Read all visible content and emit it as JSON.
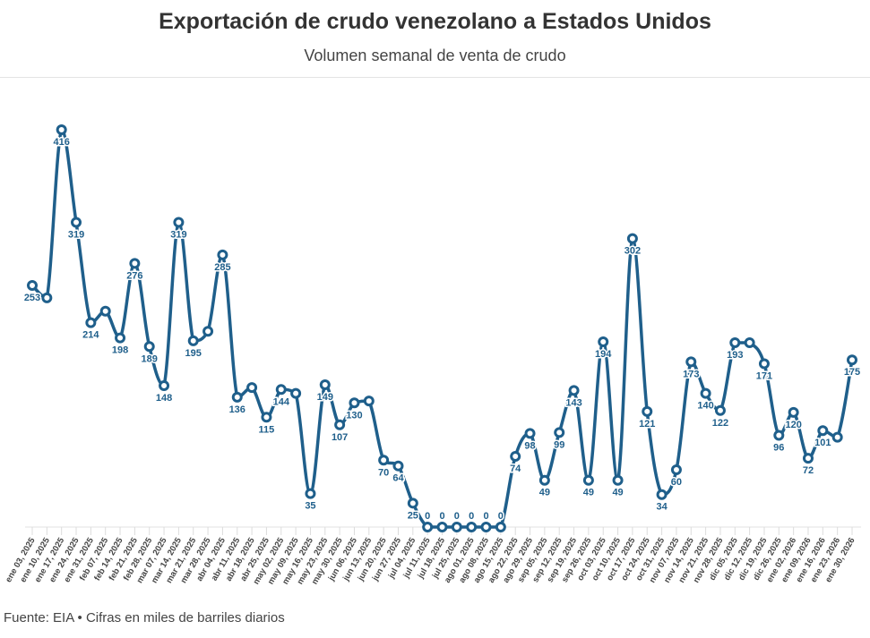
{
  "header": {
    "title": "Exportación de crudo venezolano a Estados Unidos",
    "subtitle": "Volumen semanal de venta de crudo"
  },
  "footer": {
    "source": "Fuente: EIA • Cifras en miles de barriles diarios"
  },
  "chart_data": {
    "type": "line",
    "title": "Exportación de crudo venezolano a Estados Unidos",
    "subtitle": "Volumen semanal de venta de crudo",
    "xlabel": "",
    "ylabel": "",
    "ylim": [
      0,
      416
    ],
    "grid": false,
    "color": "#1f5f8b",
    "categories": [
      "ene 03, 2025",
      "ene 10, 2025",
      "ene 17, 2025",
      "ene 24, 2025",
      "ene 31, 2025",
      "feb 07, 2025",
      "feb 14, 2025",
      "feb 21, 2025",
      "feb 28, 2025",
      "mar 07, 2025",
      "mar 14, 2025",
      "mar 21, 2025",
      "mar 28, 2025",
      "abr 04, 2025",
      "abr 11, 2025",
      "abr 18, 2025",
      "abr 25, 2025",
      "may 02, 2025",
      "may 09, 2025",
      "may 16, 2025",
      "may 23, 2025",
      "may 30, 2025",
      "jun 06, 2025",
      "jun 13, 2025",
      "jun 20, 2025",
      "jun 27, 2025",
      "jul 04, 2025",
      "jul 11, 2025",
      "jul 18, 2025",
      "jul 25, 2025",
      "ago 01, 2025",
      "ago 08, 2025",
      "ago 15, 2025",
      "ago 22, 2025",
      "ago 29, 2025",
      "sep 05, 2025",
      "sep 12, 2025",
      "sep 19, 2025",
      "sep 26, 2025",
      "oct 03, 2025",
      "oct 10, 2025",
      "oct 17, 2025",
      "oct 24, 2025",
      "oct 31, 2025",
      "nov 07, 2025",
      "nov 14, 2025",
      "nov 21, 2025",
      "nov 28, 2025",
      "dic 05, 2025",
      "dic 12, 2025",
      "dic 19, 2025",
      "dic 26, 2025",
      "ene 02, 2026",
      "ene 09, 2026",
      "ene 16, 2026",
      "ene 23, 2026",
      "ene 30, 2026"
    ],
    "values": [
      253,
      240,
      416,
      319,
      214,
      226,
      198,
      276,
      189,
      148,
      319,
      195,
      205,
      285,
      136,
      146,
      115,
      144,
      140,
      35,
      149,
      107,
      130,
      132,
      70,
      64,
      25,
      0,
      0,
      0,
      0,
      0,
      0,
      74,
      98,
      49,
      99,
      143,
      49,
      194,
      49,
      302,
      121,
      34,
      60,
      173,
      140,
      122,
      193,
      193,
      171,
      96,
      120,
      72,
      101,
      94,
      175
    ],
    "labeled": [
      true,
      false,
      true,
      true,
      true,
      false,
      true,
      true,
      true,
      true,
      true,
      true,
      false,
      true,
      true,
      false,
      true,
      true,
      false,
      true,
      true,
      true,
      true,
      false,
      true,
      true,
      true,
      true,
      true,
      true,
      true,
      true,
      true,
      true,
      true,
      true,
      true,
      true,
      true,
      true,
      true,
      true,
      true,
      true,
      true,
      true,
      true,
      true,
      true,
      false,
      true,
      true,
      true,
      true,
      true,
      false,
      true
    ]
  }
}
